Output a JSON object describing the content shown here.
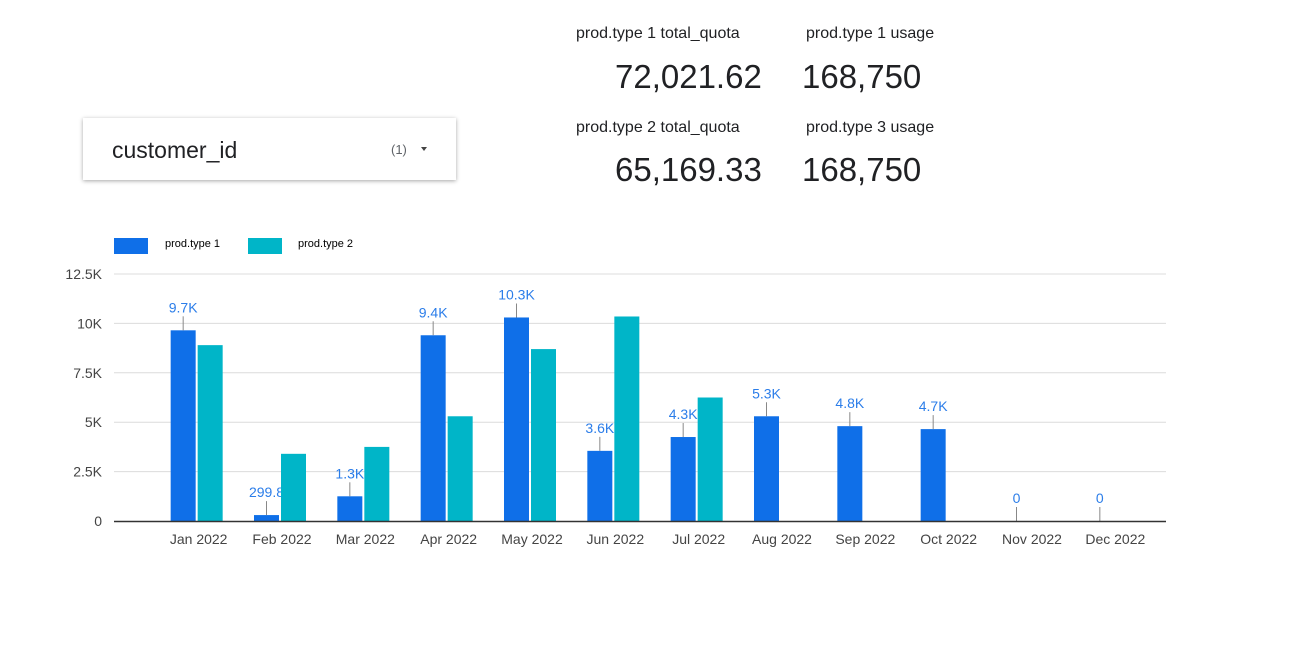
{
  "filter": {
    "label": "customer_id",
    "count": "(1)"
  },
  "kpis": [
    {
      "label": "prod.type 1 total_quota",
      "value": "72,021.62"
    },
    {
      "label": "prod.type 1 usage",
      "value": "168,750"
    },
    {
      "label": "prod.type 2 total_quota",
      "value": "65,169.33"
    },
    {
      "label": "prod.type 3 usage",
      "value": "168,750"
    }
  ],
  "chart_data": {
    "type": "bar",
    "legend_position": "top-left",
    "grid": true,
    "ylim": [
      0,
      12500
    ],
    "y_ticks": [
      0,
      2500,
      5000,
      7500,
      10000,
      12500
    ],
    "y_tick_labels": [
      "0",
      "2.5K",
      "5K",
      "7.5K",
      "10K",
      "12.5K"
    ],
    "categories": [
      "Jan 2022",
      "Feb 2022",
      "Mar 2022",
      "Apr 2022",
      "May 2022",
      "Jun 2022",
      "Jul 2022",
      "Aug 2022",
      "Sep 2022",
      "Oct 2022",
      "Nov 2022",
      "Dec 2022"
    ],
    "series": [
      {
        "name": "prod.type 1",
        "color": "#0f6fe8",
        "values": [
          9650,
          299.8,
          1250,
          9400,
          10300,
          3550,
          4250,
          5300,
          4800,
          4650,
          0,
          0
        ],
        "labels": [
          "9.7K",
          "299.8",
          "1.3K",
          "9.4K",
          "10.3K",
          "3.6K",
          "4.3K",
          "5.3K",
          "4.8K",
          "4.7K",
          "0",
          "0"
        ]
      },
      {
        "name": "prod.type 2",
        "color": "#00b5c8",
        "values": [
          8900,
          3400,
          3750,
          5300,
          8700,
          10350,
          6250,
          null,
          null,
          null,
          null,
          null
        ]
      }
    ]
  }
}
